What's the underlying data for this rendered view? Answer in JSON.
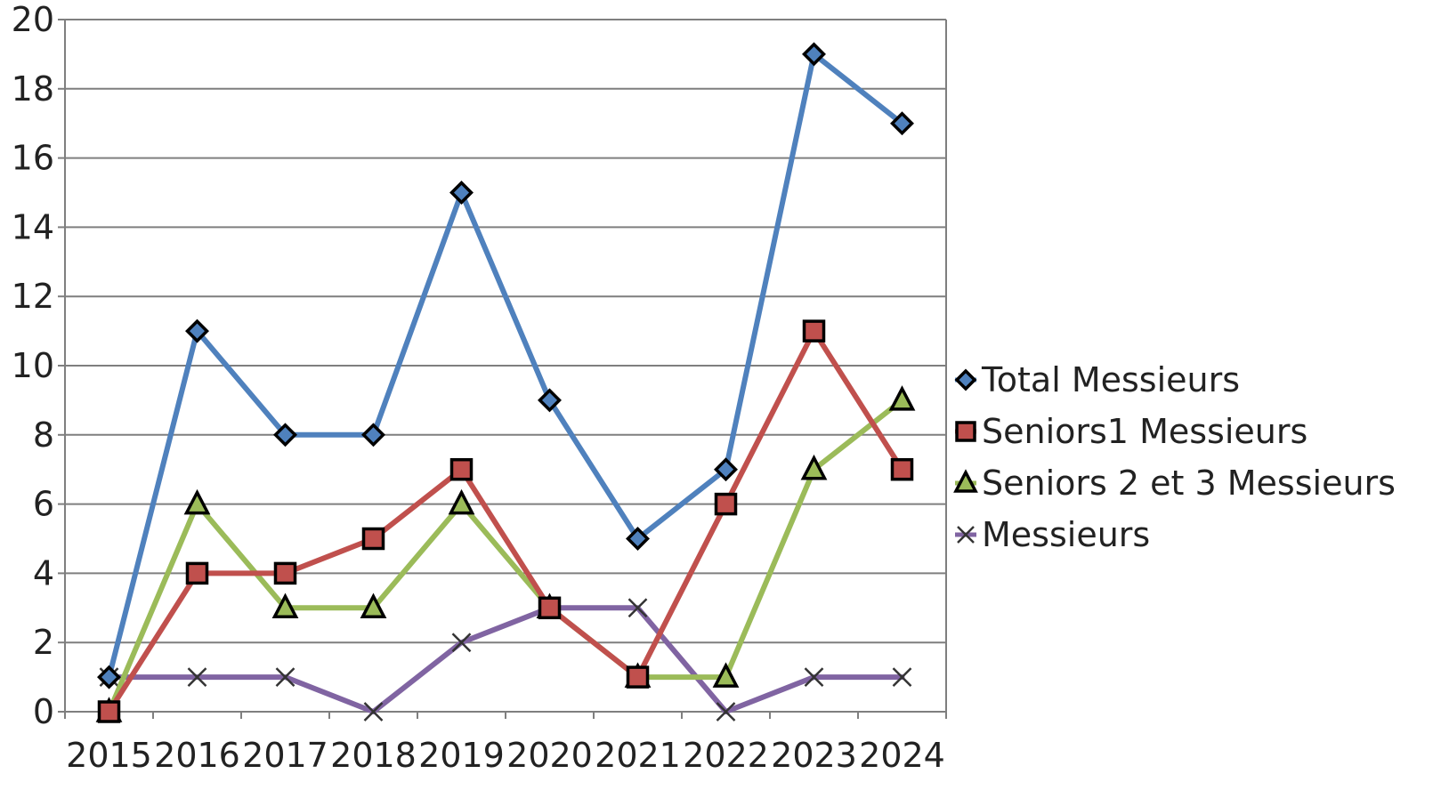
{
  "chart_data": {
    "type": "line",
    "title": "",
    "xlabel": "",
    "ylabel": "",
    "categories": [
      "2015",
      "2016",
      "2017",
      "2018",
      "2019",
      "2020",
      "2021",
      "2022",
      "2023",
      "2024"
    ],
    "ylim": [
      0,
      20
    ],
    "yticks": [
      0,
      2,
      4,
      6,
      8,
      10,
      12,
      14,
      16,
      18,
      20
    ],
    "grid": "horizontal",
    "legend_position": "right",
    "series": [
      {
        "name": "Total Messieurs",
        "values": [
          1,
          11,
          8,
          8,
          15,
          9,
          5,
          7,
          19,
          17
        ],
        "color": "#4f81bd",
        "marker": "diamond"
      },
      {
        "name": "Seniors1 Messieurs",
        "values": [
          0,
          4,
          4,
          5,
          7,
          3,
          1,
          6,
          11,
          7
        ],
        "color": "#c0504d",
        "marker": "square"
      },
      {
        "name": "Seniors 2 et 3 Messieurs",
        "values": [
          0,
          6,
          3,
          3,
          6,
          3,
          1,
          1,
          7,
          9
        ],
        "color": "#9bbb59",
        "marker": "triangle"
      },
      {
        "name": "Messieurs",
        "values": [
          1,
          1,
          1,
          0,
          2,
          3,
          3,
          0,
          1,
          1
        ],
        "color": "#8064a2",
        "marker": "x"
      }
    ]
  }
}
